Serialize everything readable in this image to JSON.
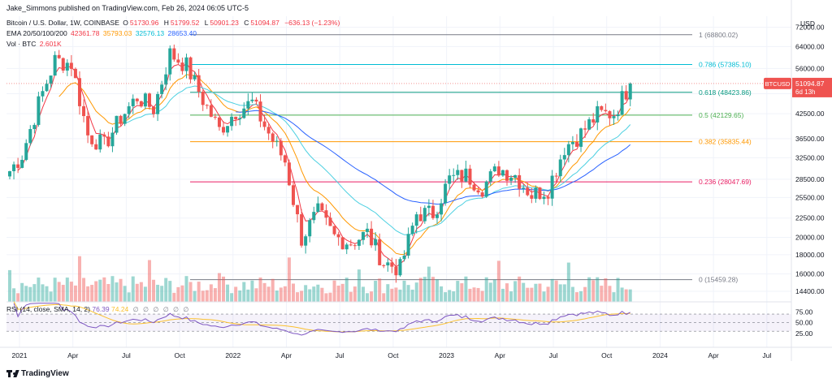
{
  "publisher": "Jake_Simmons published on TradingView.com, Feb 26, 2024 06:05 UTC-5",
  "legend": {
    "symbol": "Bitcoin / U.S. Dollar, 1W, COINBASE",
    "open_label": "O",
    "open": "51730.96",
    "high_label": "H",
    "high": "51799.52",
    "low_label": "L",
    "low": "50901.23",
    "close_label": "C",
    "close": "51094.87",
    "change": "−636.13 (−1.23%)",
    "ema_label": "EMA 20/50/100/200",
    "ema20": "42361.78",
    "ema50": "35793.03",
    "ema100": "32576.13",
    "ema200": "28653.40",
    "vol_label": "Vol · BTC",
    "vol": "2.601K"
  },
  "rsi_legend": {
    "label": "RSI (14, close, SMA, 14, 2)",
    "rsi": "76.39",
    "sma": "74.24",
    "eyes": [
      "∅",
      "∅",
      "∅",
      "∅",
      "∅",
      "∅"
    ]
  },
  "footer": {
    "brand": "TradingView"
  },
  "colors": {
    "up": "#26a69a",
    "down": "#ef5350",
    "ema20": "#f23645",
    "ema50": "#ff9800",
    "ema100": "#4dd0e1",
    "ema200": "#2962ff",
    "rsi": "#7e57c2",
    "rsi_sma": "#fbc02d"
  },
  "chart_data": {
    "type": "candlestick",
    "title": "Bitcoin / U.S. Dollar, 1W, COINBASE",
    "y_scale": "log",
    "ylim": [
      13500,
      77000
    ],
    "currency_label": "USD",
    "price_ticks": [
      "72000.00",
      "64000.00",
      "56000.00",
      "48000.00",
      "42500.00",
      "36500.00",
      "32500.00",
      "28500.00",
      "25500.00",
      "22500.00",
      "20000.00",
      "18000.00",
      "16000.00",
      "14400.00"
    ],
    "x_labels": [
      "2021",
      "Apr",
      "Jul",
      "Oct",
      "2022",
      "Apr",
      "Jul",
      "Oct",
      "2023",
      "Apr",
      "Jul",
      "Oct",
      "2024",
      "Apr",
      "Jul"
    ],
    "last_price_tag": {
      "symbol": "BTCUSD",
      "price": "51094.87",
      "countdown": "6d 13h"
    },
    "fib_levels": [
      {
        "ratio": 1,
        "price": 68800.02,
        "label": "1 (68800.02)",
        "color": "#787b86"
      },
      {
        "ratio": 0.786,
        "price": 57385.1,
        "label": "0.786 (57385.10)",
        "color": "#00bcd4"
      },
      {
        "ratio": 0.618,
        "price": 48423.86,
        "label": "0.618 (48423.86)",
        "color": "#089981"
      },
      {
        "ratio": 0.5,
        "price": 42129.65,
        "label": "0.5 (42129.65)",
        "color": "#4caf50"
      },
      {
        "ratio": 0.382,
        "price": 35835.44,
        "label": "0.382 (35835.44)",
        "color": "#ff9800"
      },
      {
        "ratio": 0.236,
        "price": 28047.69,
        "label": "0.236 (28047.69)",
        "color": "#e91e63"
      },
      {
        "ratio": 0,
        "price": 15459.28,
        "label": "0 (15459.28)",
        "color": "#787b86"
      }
    ],
    "rsi_ticks": [
      "75.00",
      "50.00",
      "25.00"
    ],
    "rsi_band": [
      30,
      70
    ],
    "monthly_closes": [
      [
        "Jan 2021",
        33100
      ],
      [
        "Feb 2021",
        45200
      ],
      [
        "Mar 2021",
        58800
      ],
      [
        "Apr 2021",
        57700
      ],
      [
        "May 2021",
        37300
      ],
      [
        "Jun 2021",
        35000
      ],
      [
        "Jul 2021",
        41500
      ],
      [
        "Aug 2021",
        47100
      ],
      [
        "Sep 2021",
        43800
      ],
      [
        "Oct 2021",
        61300
      ],
      [
        "Nov 2021",
        57000
      ],
      [
        "Dec 2021",
        46300
      ],
      [
        "Jan 2022",
        38500
      ],
      [
        "Feb 2022",
        43200
      ],
      [
        "Mar 2022",
        45500
      ],
      [
        "Apr 2022",
        37700
      ],
      [
        "May 2022",
        31800
      ],
      [
        "Jun 2022",
        19900
      ],
      [
        "Jul 2022",
        23300
      ],
      [
        "Aug 2022",
        20050
      ],
      [
        "Sep 2022",
        19400
      ],
      [
        "Oct 2022",
        20500
      ],
      [
        "Nov 2022",
        17150
      ],
      [
        "Dec 2022",
        16550
      ],
      [
        "Jan 2023",
        23100
      ],
      [
        "Feb 2023",
        23150
      ],
      [
        "Mar 2023",
        28500
      ],
      [
        "Apr 2023",
        29250
      ],
      [
        "May 2023",
        27200
      ],
      [
        "Jun 2023",
        30450
      ],
      [
        "Jul 2023",
        29250
      ],
      [
        "Aug 2023",
        25950
      ],
      [
        "Sep 2023",
        26950
      ],
      [
        "Oct 2023",
        34650
      ],
      [
        "Nov 2023",
        37700
      ],
      [
        "Dec 2023",
        42300
      ],
      [
        "Jan 2024",
        42600
      ],
      [
        "Feb 2024",
        51094.87
      ]
    ]
  }
}
